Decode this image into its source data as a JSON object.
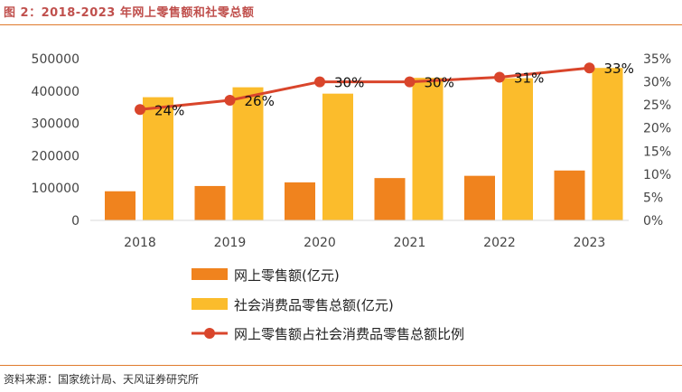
{
  "figure": {
    "title": "图 2：2018-2023 年网上零售额和社零总额",
    "source": "资料来源：国家统计局、天风证券研究所"
  },
  "colors": {
    "online": "#f0831e",
    "total": "#fbbc2c",
    "ratio": "#d9452b",
    "accent": "#e07a2c"
  },
  "chart_data": {
    "type": "bar",
    "categories": [
      "2018",
      "2019",
      "2020",
      "2021",
      "2022",
      "2023"
    ],
    "series": [
      {
        "name": "网上零售额(亿元)",
        "type": "bar",
        "axis": "left",
        "values": [
          90065,
          106324,
          117601,
          130884,
          137853,
          154264
        ]
      },
      {
        "name": "社会消费品零售总额(亿元)",
        "type": "bar",
        "axis": "left",
        "values": [
          380987,
          411649,
          391981,
          440823,
          439733,
          471495
        ]
      },
      {
        "name": "网上零售额占社会消费品零售总额比例",
        "type": "line",
        "axis": "right",
        "values": [
          0.24,
          0.26,
          0.3,
          0.3,
          0.31,
          0.33
        ],
        "labels": [
          "24%",
          "26%",
          "30%",
          "30%",
          "31%",
          "33%"
        ]
      }
    ],
    "y_left": {
      "min": 0,
      "max": 500000,
      "ticks": [
        "0",
        "100000",
        "200000",
        "300000",
        "400000",
        "500000"
      ]
    },
    "y_right": {
      "min": 0,
      "max": 0.35,
      "ticks": [
        "0%",
        "5%",
        "10%",
        "15%",
        "20%",
        "25%",
        "30%",
        "35%"
      ]
    },
    "grid": false,
    "legend": "bottom-center"
  }
}
